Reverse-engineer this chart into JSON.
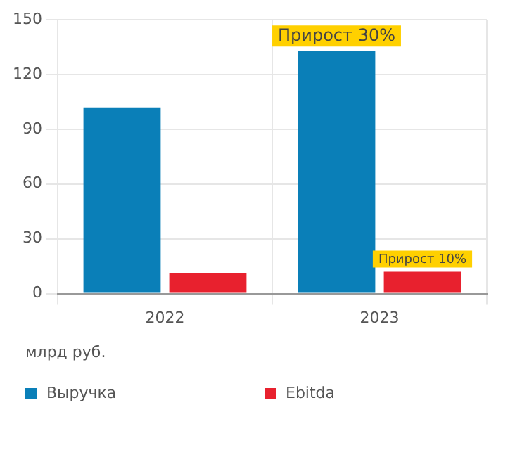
{
  "chart_data": {
    "type": "bar",
    "categories": [
      "2022",
      "2023"
    ],
    "series": [
      {
        "name": "Выручка",
        "color": "#0a7fb8",
        "values": [
          102,
          133
        ]
      },
      {
        "name": "Ebitda",
        "color": "#e8212e",
        "values": [
          11,
          12
        ]
      }
    ],
    "ylim": [
      0,
      150
    ],
    "yticks": [
      0,
      30,
      60,
      90,
      120,
      150
    ],
    "grid": true,
    "legend": "bottom",
    "ylabel": "млрд руб.",
    "annotations": [
      {
        "text": "Прирост 30%",
        "x": "2023",
        "y": 133
      },
      {
        "text": "Прирост 10%",
        "x": "2023",
        "y": 12
      }
    ]
  }
}
